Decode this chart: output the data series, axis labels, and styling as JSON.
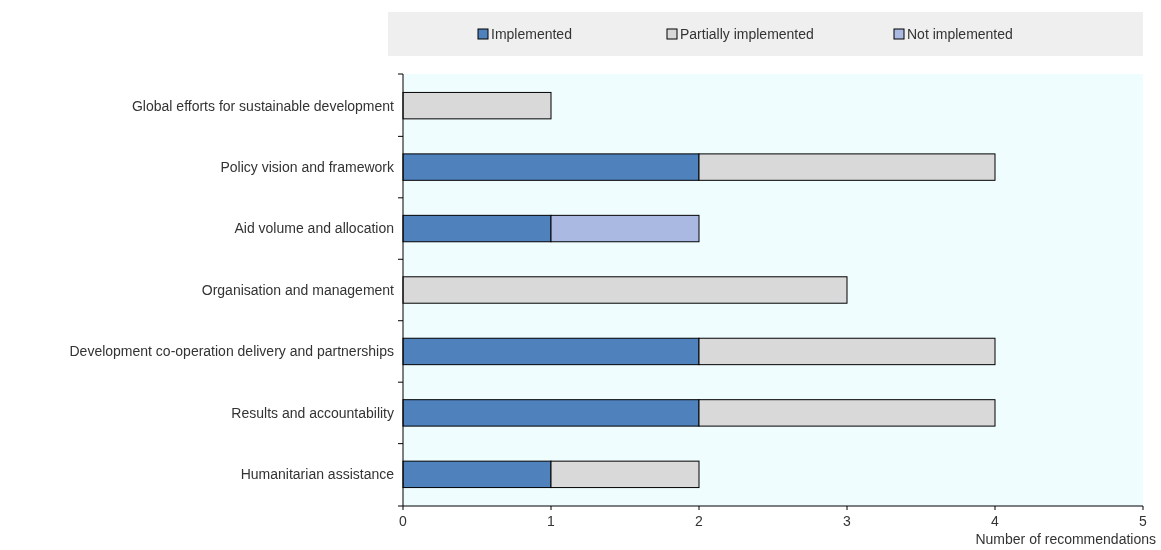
{
  "chart_data": {
    "type": "bar",
    "orientation": "horizontal",
    "stacked": true,
    "categories": [
      "Global efforts for sustainable development",
      "Policy vision and framework",
      "Aid volume and allocation",
      "Organisation and management",
      "Development co-operation delivery and partnerships",
      "Results and accountability",
      "Humanitarian assistance"
    ],
    "series": [
      {
        "name": "Implemented",
        "color": "#4f81bd",
        "values": [
          0,
          2,
          1,
          0,
          2,
          2,
          1
        ]
      },
      {
        "name": "Partially implemented",
        "color": "#d9d9d9",
        "values": [
          1,
          2,
          0,
          3,
          2,
          2,
          1
        ]
      },
      {
        "name": "Not implemented",
        "color": "#a9b9e1",
        "values": [
          0,
          0,
          1,
          0,
          0,
          0,
          0
        ]
      }
    ],
    "xlim": [
      0,
      5
    ],
    "xticks": [
      0,
      1,
      2,
      3,
      4,
      5
    ],
    "xlabel": "Number of recommendations",
    "legend": "top",
    "grid": false
  }
}
